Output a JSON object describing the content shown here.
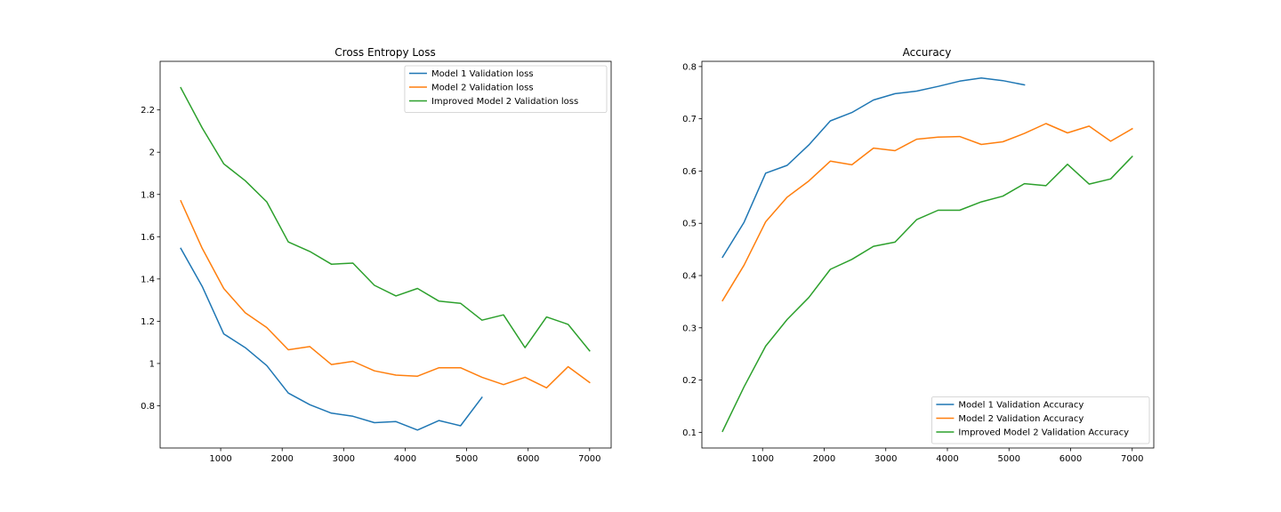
{
  "chart_data": [
    {
      "type": "line",
      "title": "Cross Entropy Loss",
      "xlabel": "",
      "ylabel": "",
      "xlim": [
        15,
        7350
      ],
      "ylim": [
        0.6,
        2.43
      ],
      "xticks": [
        1000,
        2000,
        3000,
        4000,
        5000,
        6000,
        7000
      ],
      "yticks": [
        0.8,
        1.0,
        1.2,
        1.4,
        1.6,
        1.8,
        2.0,
        2.2
      ],
      "grid": false,
      "legend_position": "upper right",
      "series": [
        {
          "name": "Model 1  Validation loss",
          "color": "#1f77b4",
          "x": [
            350,
            700,
            1050,
            1400,
            1750,
            2100,
            2450,
            2800,
            3150,
            3500,
            3850,
            4200,
            4550,
            4900,
            5250
          ],
          "y": [
            1.545,
            1.365,
            1.14,
            1.075,
            0.99,
            0.86,
            0.805,
            0.765,
            0.75,
            0.72,
            0.725,
            0.685,
            0.73,
            0.705,
            0.84
          ]
        },
        {
          "name": "Model 2  Validation loss",
          "color": "#ff7f0e",
          "x": [
            350,
            700,
            1050,
            1400,
            1750,
            2100,
            2450,
            2800,
            3150,
            3500,
            3850,
            4200,
            4550,
            4900,
            5250,
            5600,
            5950,
            6300,
            6650,
            7000
          ],
          "y": [
            1.77,
            1.545,
            1.355,
            1.24,
            1.17,
            1.065,
            1.08,
            0.995,
            1.01,
            0.965,
            0.945,
            0.94,
            0.98,
            0.98,
            0.935,
            0.9,
            0.935,
            0.885,
            0.985,
            0.91
          ]
        },
        {
          "name": "Improved Model 2  Validation loss",
          "color": "#2ca02c",
          "x": [
            350,
            700,
            1050,
            1400,
            1750,
            2100,
            2450,
            2800,
            3150,
            3500,
            3850,
            4200,
            4550,
            4900,
            5250,
            5600,
            5950,
            6300,
            6650,
            7000
          ],
          "y": [
            2.305,
            2.115,
            1.945,
            1.865,
            1.765,
            1.575,
            1.53,
            1.47,
            1.475,
            1.37,
            1.32,
            1.355,
            1.295,
            1.285,
            1.205,
            1.23,
            1.075,
            1.22,
            1.185,
            1.06
          ]
        }
      ]
    },
    {
      "type": "line",
      "title": "Accuracy",
      "xlabel": "",
      "ylabel": "",
      "xlim": [
        15,
        7350
      ],
      "ylim": [
        0.07,
        0.81
      ],
      "xticks": [
        1000,
        2000,
        3000,
        4000,
        5000,
        6000,
        7000
      ],
      "yticks": [
        0.1,
        0.2,
        0.3,
        0.4,
        0.5,
        0.6,
        0.7,
        0.8
      ],
      "grid": false,
      "legend_position": "lower right",
      "series": [
        {
          "name": "Model 1 Validation Accuracy",
          "color": "#1f77b4",
          "x": [
            350,
            700,
            1050,
            1400,
            1750,
            2100,
            2450,
            2800,
            3150,
            3500,
            3850,
            4200,
            4550,
            4900,
            5250
          ],
          "y": [
            0.435,
            0.502,
            0.596,
            0.611,
            0.65,
            0.696,
            0.712,
            0.736,
            0.748,
            0.753,
            0.762,
            0.772,
            0.778,
            0.773,
            0.765
          ]
        },
        {
          "name": "Model 2 Validation Accuracy",
          "color": "#ff7f0e",
          "x": [
            350,
            700,
            1050,
            1400,
            1750,
            2100,
            2450,
            2800,
            3150,
            3500,
            3850,
            4200,
            4550,
            4900,
            5250,
            5600,
            5950,
            6300,
            6650,
            7000
          ],
          "y": [
            0.352,
            0.42,
            0.503,
            0.55,
            0.581,
            0.619,
            0.612,
            0.644,
            0.639,
            0.661,
            0.665,
            0.666,
            0.651,
            0.656,
            0.672,
            0.691,
            0.673,
            0.686,
            0.657,
            0.681
          ]
        },
        {
          "name": "Improved Model 2 Validation Accuracy",
          "color": "#2ca02c",
          "x": [
            350,
            700,
            1050,
            1400,
            1750,
            2100,
            2450,
            2800,
            3150,
            3500,
            3850,
            4200,
            4550,
            4900,
            5250,
            5600,
            5950,
            6300,
            6650,
            7000
          ],
          "y": [
            0.102,
            0.187,
            0.265,
            0.316,
            0.358,
            0.412,
            0.431,
            0.456,
            0.464,
            0.507,
            0.525,
            0.525,
            0.541,
            0.552,
            0.576,
            0.572,
            0.613,
            0.575,
            0.585,
            0.628
          ]
        }
      ]
    }
  ]
}
